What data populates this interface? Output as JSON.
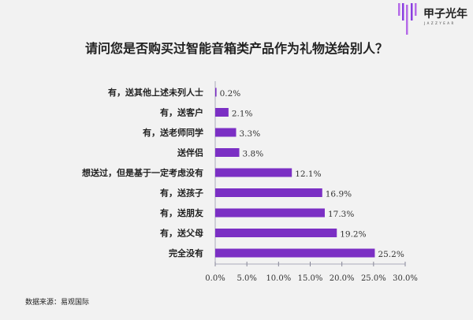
{
  "logo": {
    "name": "甲子光年",
    "sub": "JAZZYEAR"
  },
  "chart_data": {
    "type": "bar",
    "orientation": "horizontal",
    "title": "请问您是否购买过智能音箱类产品作为礼物送给别人？",
    "categories": [
      "有，送其他上述未列人士",
      "有，送客户",
      "有，送老师同学",
      "送伴侣",
      "想送过，但是基于一定考虑没有",
      "有，送孩子",
      "有，送朋友",
      "有，送父母",
      "完全没有"
    ],
    "values": [
      0.2,
      2.1,
      3.3,
      3.8,
      12.1,
      16.9,
      17.3,
      19.2,
      25.2
    ],
    "value_labels": [
      "0.2%",
      "2.1%",
      "3.3%",
      "3.8%",
      "12.1%",
      "16.9%",
      "17.3%",
      "19.2%",
      "25.2%"
    ],
    "xlim": [
      0,
      30
    ],
    "xticks": [
      "0.0%",
      "5.0%",
      "10.0%",
      "15.0%",
      "20.0%",
      "25.0%",
      "30.0%"
    ],
    "xlabel": "",
    "ylabel": "",
    "grid": false,
    "bar_color": "#7b2fc4"
  },
  "source": "数据来源：易观国际"
}
